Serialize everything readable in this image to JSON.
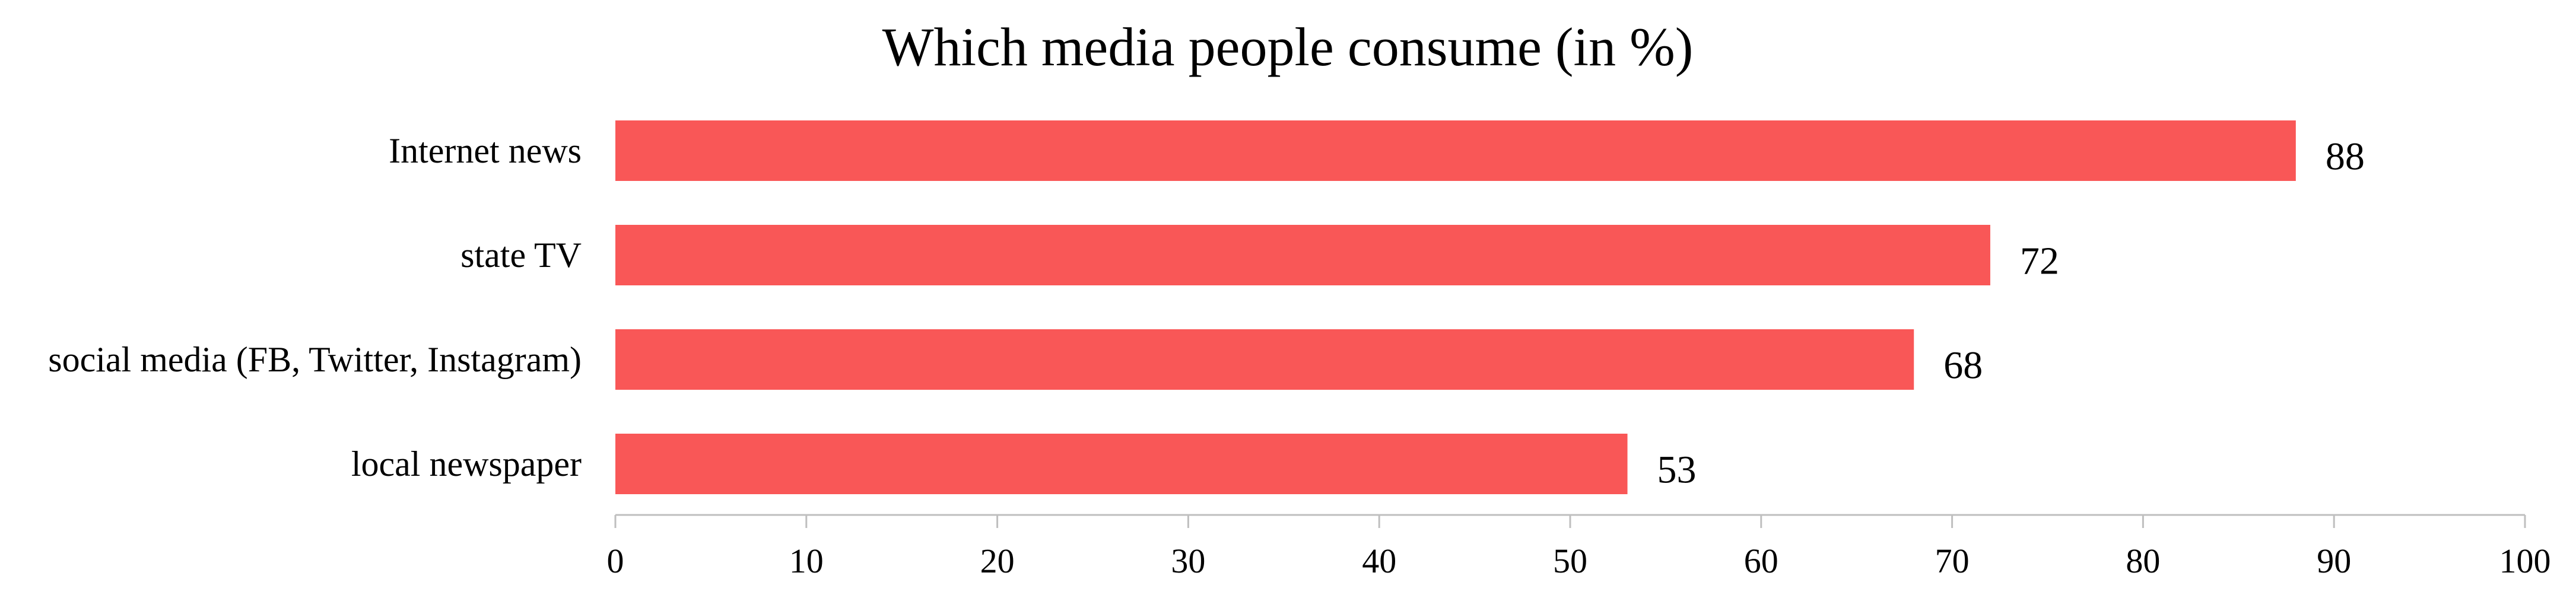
{
  "chart_data": {
    "type": "bar",
    "orientation": "horizontal",
    "title": "Which media people consume (in %)",
    "categories": [
      "Internet news",
      "state TV",
      "social media (FB, Twitter, Instagram)",
      "local newspaper"
    ],
    "values": [
      88,
      72,
      68,
      53
    ],
    "value_labels": [
      "88",
      "72",
      "68",
      "53"
    ],
    "xlim": [
      0,
      100
    ],
    "xticks": [
      "0",
      "10",
      "20",
      "30",
      "40",
      "50",
      "60",
      "70",
      "80",
      "90",
      "100"
    ],
    "xlabel": "",
    "ylabel": "",
    "grid": false,
    "legend": "none",
    "bar_color": "#f95757"
  }
}
